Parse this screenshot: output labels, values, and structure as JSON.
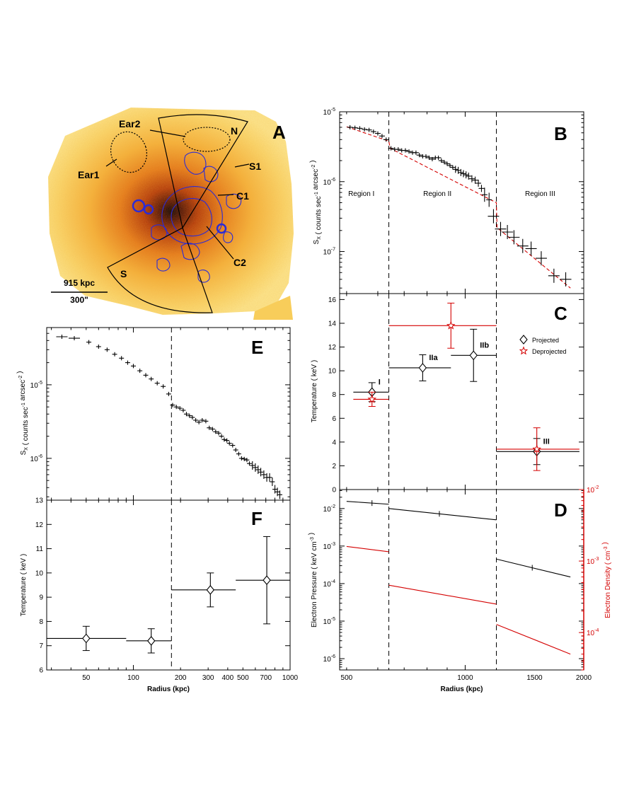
{
  "colors": {
    "black": "#000000",
    "red": "#d40000",
    "contour": "#2b2bd6"
  },
  "panel_a": {
    "letter": "A",
    "labels": {
      "ear1": "Ear1",
      "ear2": "Ear2",
      "n": "N",
      "s": "S",
      "s1": "S1",
      "c1": "C1",
      "c2": "C2"
    },
    "scalebar": {
      "kpc": "915 kpc",
      "arcsec": "300\""
    }
  },
  "chart_data": [
    {
      "id": "B",
      "type": "scatter",
      "letter": "B",
      "title": "",
      "xlabel": "",
      "ylabel": "S_X ( counts sec^-1 arcsec^-2 )",
      "xlim": [
        480,
        2000
      ],
      "ylim": [
        2.5e-08,
        1e-05
      ],
      "xscale": "log",
      "yscale": "log",
      "yticks": [
        "10",
        "10",
        "10"
      ],
      "yexp": [
        "-5",
        "-6",
        "-7"
      ],
      "ytick_values": [
        1e-05,
        1e-06,
        1e-07
      ],
      "dividers": [
        640,
        1200
      ],
      "regions": [
        "Region I",
        "Region II",
        "Region III"
      ],
      "region_x": [
        545,
        850,
        1550
      ],
      "x": [
        510,
        525,
        540,
        555,
        570,
        585,
        600,
        615,
        630,
        648,
        662,
        676,
        690,
        705,
        720,
        735,
        750,
        765,
        780,
        795,
        810,
        825,
        840,
        855,
        870,
        885,
        900,
        915,
        930,
        945,
        960,
        975,
        990,
        1005,
        1020,
        1040,
        1060,
        1080,
        1100,
        1120,
        1150,
        1180,
        1230,
        1280,
        1330,
        1400,
        1470,
        1560,
        1680,
        1800
      ],
      "y": [
        6e-06,
        5.9e-06,
        5.8e-06,
        5.6e-06,
        5.5e-06,
        5.2e-06,
        4.9e-06,
        4.5e-06,
        4e-06,
        3e-06,
        2.9e-06,
        2.9e-06,
        2.8e-06,
        2.8e-06,
        2.7e-06,
        2.6e-06,
        2.6e-06,
        2.4e-06,
        2.3e-06,
        2.3e-06,
        2.2e-06,
        2.1e-06,
        2.2e-06,
        2.2e-06,
        2e-06,
        1.9e-06,
        1.8e-06,
        1.7e-06,
        1.6e-06,
        1.5e-06,
        1.45e-06,
        1.35e-06,
        1.3e-06,
        1.25e-06,
        1.2e-06,
        1.1e-06,
        1.05e-06,
        9.5e-07,
        8e-07,
        6.5e-07,
        5.5e-07,
        3.2e-07,
        2.1e-07,
        1.9e-07,
        1.6e-07,
        1.2e-07,
        1.1e-07,
        8e-08,
        4.5e-08,
        4e-08
      ],
      "model": {
        "x": [
          500,
          640,
          645,
          1200,
          1205,
          1850
        ],
        "y": [
          6.1e-06,
          3.8e-06,
          3e-06,
          5e-07,
          2.2e-07,
          3e-08
        ]
      }
    },
    {
      "id": "C",
      "type": "scatter",
      "letter": "C",
      "ylabel": "Temperature ( keV )",
      "xlim": [
        480,
        2000
      ],
      "ylim": [
        0,
        16.5
      ],
      "xscale": "log",
      "yticks": [
        "0",
        "2",
        "4",
        "6",
        "8",
        "10",
        "12",
        "14",
        "16"
      ],
      "dividers": [
        640,
        1200
      ],
      "series": [
        {
          "name": "Projected",
          "color": "#000000",
          "marker": "diamond",
          "points": [
            {
              "x": 580,
              "xlo": 520,
              "xhi": 640,
              "y": 8.2,
              "err": 0.8,
              "label": "I"
            },
            {
              "x": 780,
              "xlo": 640,
              "xhi": 920,
              "y": 10.25,
              "err": 1.1,
              "label": "IIa"
            },
            {
              "x": 1050,
              "xlo": 920,
              "xhi": 1200,
              "y": 11.3,
              "err": 2.2,
              "label": "IIb"
            },
            {
              "x": 1520,
              "xlo": 1200,
              "xhi": 1950,
              "y": 3.2,
              "err": 1.1,
              "label": "III"
            }
          ]
        },
        {
          "name": "Deprojected",
          "color": "#d40000",
          "marker": "star",
          "points": [
            {
              "x": 580,
              "xlo": 520,
              "xhi": 640,
              "y": 7.6,
              "err": 0.6
            },
            {
              "x": 920,
              "xlo": 640,
              "xhi": 1200,
              "y": 13.8,
              "err": 1.9
            },
            {
              "x": 1520,
              "xlo": 1200,
              "xhi": 1950,
              "y": 3.4,
              "err": 1.8
            }
          ]
        }
      ],
      "legend": [
        "Projected",
        "Deprojected"
      ]
    },
    {
      "id": "D",
      "type": "line",
      "letter": "D",
      "xlabel": "Radius (kpc)",
      "ylabel": "Electron Pressure ( keV cm^-3 )",
      "y2label": "Electron Density ( cm^-3 )",
      "xlim": [
        480,
        2000
      ],
      "ylim": [
        5e-07,
        0.032
      ],
      "y2lim": [
        3e-05,
        0.01
      ],
      "xscale": "log",
      "yscale": "log",
      "xticks": [
        "500",
        "1000",
        "1500",
        "2000"
      ],
      "xtick_values": [
        500,
        1000,
        1500,
        2000
      ],
      "yticks": [
        "10",
        "10",
        "10",
        "10",
        "10"
      ],
      "yexp": [
        "-2",
        "-3",
        "-4",
        "-5",
        "-6"
      ],
      "ytick_values": [
        0.01,
        0.001,
        0.0001,
        1e-05,
        1e-06
      ],
      "y2ticks": [
        "10",
        "10",
        "10"
      ],
      "y2exp": [
        "-2",
        "-3",
        "-4"
      ],
      "y2tick_values": [
        0.01,
        0.001,
        0.0001
      ],
      "dividers": [
        640,
        1200
      ],
      "pressure": [
        {
          "x": [
            500,
            640
          ],
          "y": [
            0.0155,
            0.013
          ]
        },
        {
          "x": [
            640,
            1200
          ],
          "y": [
            0.01,
            0.005
          ]
        },
        {
          "x": [
            1200,
            1850
          ],
          "y": [
            0.00045,
            0.00015
          ]
        }
      ],
      "density": [
        {
          "x": [
            500,
            640
          ],
          "y": [
            0.0016,
            0.00135
          ]
        },
        {
          "x": [
            640,
            1200
          ],
          "y": [
            0.00046,
            0.00025
          ]
        },
        {
          "x": [
            1200,
            1850
          ],
          "y": [
            0.00013,
            5e-05
          ]
        }
      ]
    },
    {
      "id": "E",
      "type": "scatter",
      "letter": "E",
      "ylabel": "S_X ( counts sec^-1 arcsec^-2 )",
      "xlim": [
        28,
        1000
      ],
      "ylim": [
        2.7e-07,
        6e-05
      ],
      "xscale": "log",
      "yscale": "log",
      "yticks": [
        "10",
        "10"
      ],
      "yexp": [
        "-5",
        "-6"
      ],
      "ytick_values": [
        1e-05,
        1e-06
      ],
      "divider": 175,
      "x": [
        35,
        42,
        52,
        60,
        68,
        76,
        84,
        92,
        100,
        110,
        120,
        130,
        142,
        155,
        168,
        178,
        188,
        198,
        208,
        218,
        228,
        238,
        250,
        262,
        275,
        290,
        305,
        320,
        335,
        350,
        365,
        380,
        395,
        410,
        430,
        450,
        470,
        490,
        510,
        530,
        550,
        575,
        600,
        625,
        650,
        680,
        710,
        740,
        770,
        800,
        830,
        860
      ],
      "y": [
        4.5e-05,
        4.3e-05,
        3.8e-05,
        3.3e-05,
        3e-05,
        2.6e-05,
        2.3e-05,
        2e-05,
        1.8e-05,
        1.55e-05,
        1.35e-05,
        1.2e-05,
        1.05e-05,
        9.5e-06,
        7.5e-06,
        5.3e-06,
        5e-06,
        4.8e-06,
        4.5e-06,
        4e-06,
        3.8e-06,
        3.6e-06,
        3.3e-06,
        3.1e-06,
        3.3e-06,
        3.2e-06,
        2.6e-06,
        2.5e-06,
        2.3e-06,
        2.2e-06,
        2e-06,
        1.8e-06,
        1.75e-06,
        1.6e-06,
        1.5e-06,
        1.3e-06,
        1.15e-06,
        1e-06,
        9.8e-07,
        9.5e-07,
        8.5e-07,
        8e-07,
        7.5e-07,
        7e-07,
        6.5e-07,
        6e-07,
        5.5e-07,
        5.5e-07,
        4.8e-07,
        3.8e-07,
        3.5e-07,
        3.2e-07
      ]
    },
    {
      "id": "F",
      "type": "scatter",
      "letter": "F",
      "xlabel": "Radius (kpc)",
      "ylabel": "Temperature ( keV )",
      "xlim": [
        28,
        1000
      ],
      "ylim": [
        6,
        13
      ],
      "xscale": "log",
      "xticks": [
        "50",
        "100",
        "200",
        "300",
        "400",
        "500",
        "700",
        "1000"
      ],
      "xtick_values": [
        50,
        100,
        200,
        300,
        400,
        500,
        700,
        1000
      ],
      "yticks": [
        "6",
        "7",
        "8",
        "9",
        "10",
        "11",
        "12",
        "13"
      ],
      "divider": 175,
      "points": [
        {
          "x": 50,
          "xlo": 28,
          "xhi": 90,
          "y": 7.3,
          "err": 0.5
        },
        {
          "x": 130,
          "xlo": 90,
          "xhi": 175,
          "y": 7.2,
          "err": 0.5
        },
        {
          "x": 310,
          "xlo": 175,
          "xhi": 450,
          "y": 9.3,
          "err": 0.7
        },
        {
          "x": 710,
          "xlo": 450,
          "xhi": 1000,
          "y": 9.7,
          "err": 1.8
        }
      ]
    }
  ]
}
